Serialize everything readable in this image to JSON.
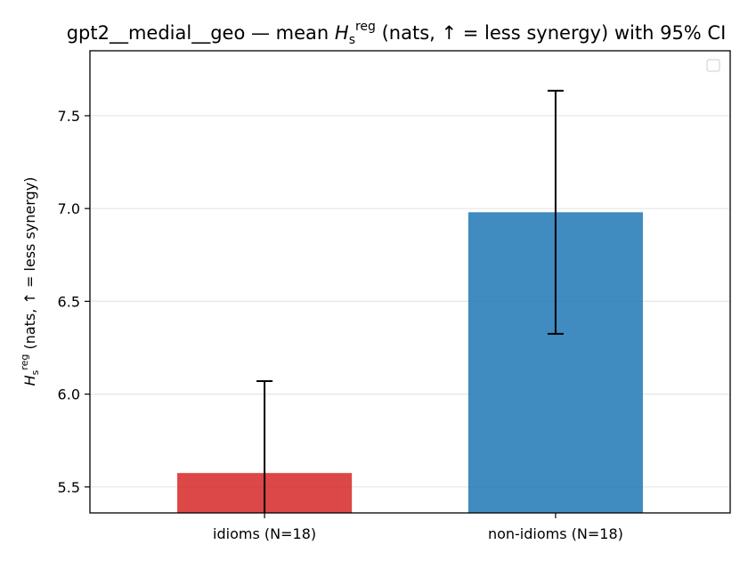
{
  "chart_data": {
    "type": "bar",
    "title_prefix": "gpt2__medial__geo — mean ",
    "title_symbol": "H",
    "title_sub": "s",
    "title_sup": "reg",
    "title_suffix": " (nats, ↑ = less synergy) with 95% CI",
    "ylabel_symbol": "H",
    "ylabel_sub": "s",
    "ylabel_sup": "reg",
    "ylabel_suffix": " (nats, ↑ = less synergy)",
    "categories": [
      "idioms (N=18)",
      "non-idioms (N=18)"
    ],
    "values": [
      5.575,
      6.98
    ],
    "ci_lower": [
      5.36,
      6.325
    ],
    "ci_upper": [
      6.07,
      7.635
    ],
    "colors": [
      "#d62728",
      "#1f77b4"
    ],
    "ylim": [
      5.36,
      7.85
    ],
    "yticks": [
      5.5,
      6.0,
      6.5,
      7.0,
      7.5
    ],
    "ytick_labels": [
      "5.5",
      "6.0",
      "6.5",
      "7.0",
      "7.5"
    ],
    "grid": "horizontal",
    "legend": "top-right (empty)"
  }
}
